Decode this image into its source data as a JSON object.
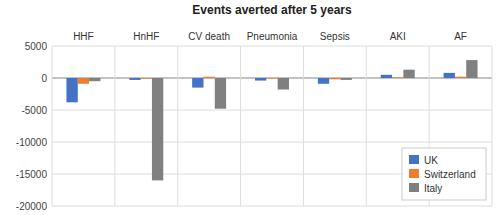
{
  "chart_data": {
    "type": "bar",
    "title": "Events averted after 5 years",
    "categories": [
      "HHF",
      "HnHF",
      "CV death",
      "Pneumonia",
      "Sepsis",
      "AKI",
      "AF"
    ],
    "series": [
      {
        "name": "UK",
        "color": "#4472c4",
        "values": [
          -3800,
          -300,
          -1500,
          -400,
          -900,
          500,
          800
        ]
      },
      {
        "name": "Switzerland",
        "color": "#ed7d31",
        "values": [
          -900,
          -100,
          200,
          -100,
          -200,
          100,
          200
        ]
      },
      {
        "name": "Italy",
        "color": "#808080",
        "values": [
          -500,
          -16000,
          -4800,
          -1800,
          -300,
          1300,
          2800
        ]
      }
    ],
    "ylim": [
      -20000,
      5000
    ],
    "yticks": [
      -20000,
      -15000,
      -10000,
      -5000,
      0,
      5000
    ],
    "grid": true,
    "legend": "lower right"
  }
}
